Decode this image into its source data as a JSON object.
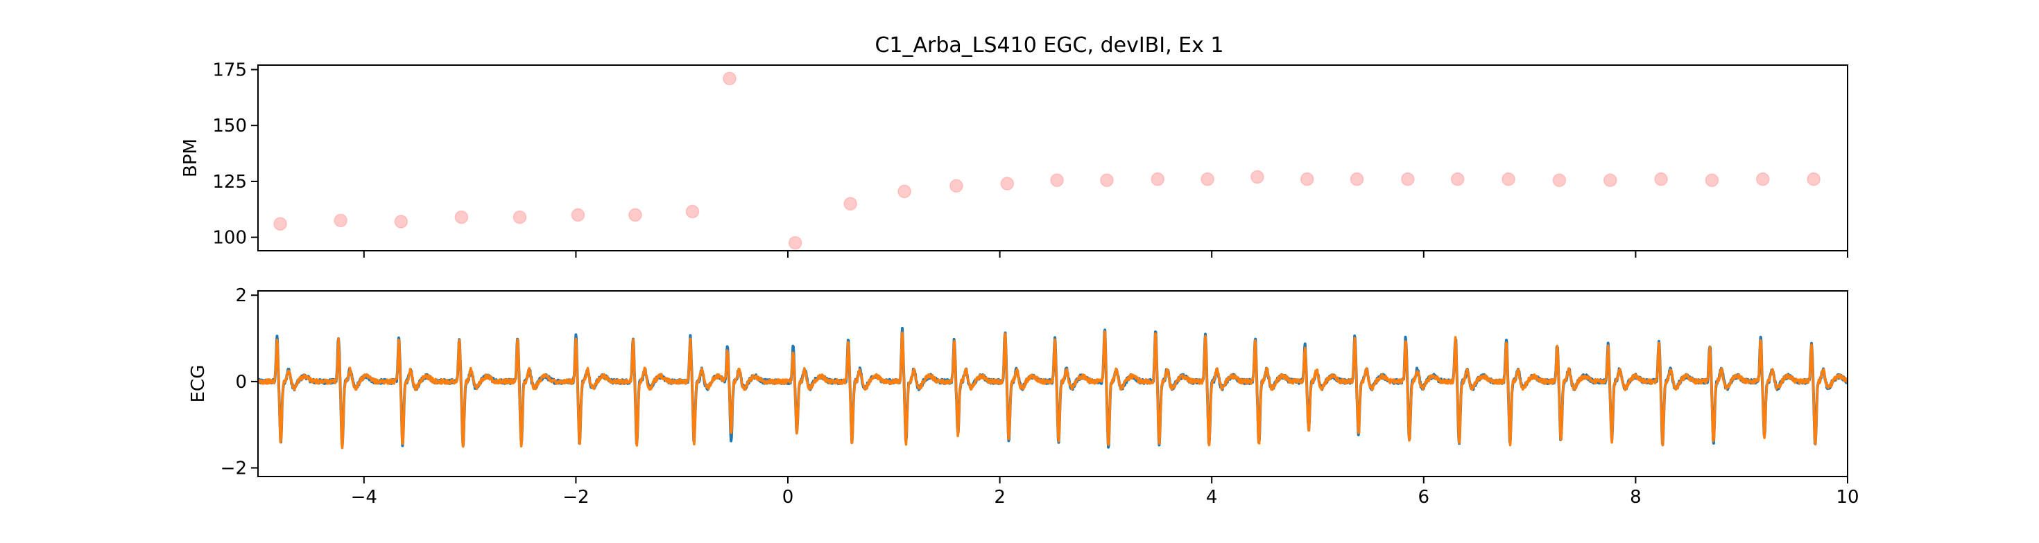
{
  "figure": {
    "title": "C1_Arba_LS410 EGC, devIBI, Ex 1"
  },
  "chart_data": [
    {
      "type": "scatter",
      "ylabel": "BPM",
      "xlim": [
        -5,
        10
      ],
      "ylim": [
        94,
        177
      ],
      "yticks": [
        100,
        125,
        150,
        175
      ],
      "xticks": [
        -4,
        -2,
        0,
        2,
        4,
        6,
        8,
        10
      ],
      "show_xtick_labels": false,
      "grid": false,
      "marker_color": "#ff9896",
      "marker_alpha": 0.5,
      "points": [
        {
          "x": -4.79,
          "y": 106
        },
        {
          "x": -4.22,
          "y": 107.5
        },
        {
          "x": -3.65,
          "y": 107
        },
        {
          "x": -3.08,
          "y": 109
        },
        {
          "x": -2.53,
          "y": 109
        },
        {
          "x": -1.98,
          "y": 110
        },
        {
          "x": -1.44,
          "y": 110
        },
        {
          "x": -0.9,
          "y": 111.5
        },
        {
          "x": -0.55,
          "y": 171
        },
        {
          "x": 0.07,
          "y": 97.5
        },
        {
          "x": 0.59,
          "y": 115
        },
        {
          "x": 1.1,
          "y": 120.5
        },
        {
          "x": 1.59,
          "y": 123
        },
        {
          "x": 2.07,
          "y": 124
        },
        {
          "x": 2.54,
          "y": 125.5
        },
        {
          "x": 3.01,
          "y": 125.5
        },
        {
          "x": 3.49,
          "y": 126
        },
        {
          "x": 3.96,
          "y": 126
        },
        {
          "x": 4.43,
          "y": 127
        },
        {
          "x": 4.9,
          "y": 126
        },
        {
          "x": 5.37,
          "y": 126
        },
        {
          "x": 5.85,
          "y": 126
        },
        {
          "x": 6.32,
          "y": 126
        },
        {
          "x": 6.8,
          "y": 126
        },
        {
          "x": 7.28,
          "y": 125.5
        },
        {
          "x": 7.76,
          "y": 125.5
        },
        {
          "x": 8.24,
          "y": 126
        },
        {
          "x": 8.72,
          "y": 125.5
        },
        {
          "x": 9.2,
          "y": 126
        },
        {
          "x": 9.68,
          "y": 126
        }
      ]
    },
    {
      "type": "line",
      "ylabel": "ECG",
      "xlim": [
        -5,
        10
      ],
      "ylim": [
        -2.2,
        2.1
      ],
      "yticks": [
        -2,
        0,
        2
      ],
      "xticks": [
        -4,
        -2,
        0,
        2,
        4,
        6,
        8,
        10
      ],
      "grid": false,
      "series": [
        {
          "color": "#1f77b4",
          "beats": [
            {
              "t": -4.82,
              "r": 1.02,
              "s": -1.4
            },
            {
              "t": -4.24,
              "r": 1.02,
              "s": -1.5
            },
            {
              "t": -3.67,
              "r": 1.0,
              "s": -1.45
            },
            {
              "t": -3.1,
              "r": 1.0,
              "s": -1.5
            },
            {
              "t": -2.55,
              "r": 1.0,
              "s": -1.45
            },
            {
              "t": -2.0,
              "r": 1.08,
              "s": -1.45
            },
            {
              "t": -1.46,
              "r": 1.03,
              "s": -1.45
            },
            {
              "t": -0.92,
              "r": 1.03,
              "s": -1.4
            },
            {
              "t": -0.57,
              "r": 0.82,
              "s": -1.35
            },
            {
              "t": 0.05,
              "r": 0.8,
              "s": -1.15
            },
            {
              "t": 0.57,
              "r": 0.97,
              "s": -1.4
            },
            {
              "t": 1.08,
              "r": 1.2,
              "s": -1.4
            },
            {
              "t": 1.57,
              "r": 0.97,
              "s": -1.2
            },
            {
              "t": 2.05,
              "r": 1.15,
              "s": -1.35
            },
            {
              "t": 2.52,
              "r": 1.0,
              "s": -1.38
            },
            {
              "t": 2.99,
              "r": 1.23,
              "s": -1.5
            },
            {
              "t": 3.47,
              "r": 1.17,
              "s": -1.45
            },
            {
              "t": 3.94,
              "r": 1.1,
              "s": -1.45
            },
            {
              "t": 4.41,
              "r": 0.98,
              "s": -1.45
            },
            {
              "t": 4.88,
              "r": 0.85,
              "s": -1.1
            },
            {
              "t": 5.35,
              "r": 1.05,
              "s": -1.2
            },
            {
              "t": 5.83,
              "r": 1.02,
              "s": -1.35
            },
            {
              "t": 6.3,
              "r": 1.03,
              "s": -1.42
            },
            {
              "t": 6.78,
              "r": 1.0,
              "s": -1.42
            },
            {
              "t": 7.26,
              "r": 0.85,
              "s": -1.38
            },
            {
              "t": 7.74,
              "r": 0.85,
              "s": -1.35
            },
            {
              "t": 8.22,
              "r": 0.95,
              "s": -1.45
            },
            {
              "t": 8.7,
              "r": 0.85,
              "s": -1.4
            },
            {
              "t": 9.18,
              "r": 1.05,
              "s": -1.3
            },
            {
              "t": 9.66,
              "r": 0.88,
              "s": -1.48
            }
          ]
        },
        {
          "color": "#ff7f0e",
          "beats": [
            {
              "t": -4.82,
              "r": 0.95,
              "s": -1.42
            },
            {
              "t": -4.24,
              "r": 0.95,
              "s": -1.52
            },
            {
              "t": -3.67,
              "r": 0.95,
              "s": -1.47
            },
            {
              "t": -3.1,
              "r": 0.95,
              "s": -1.52
            },
            {
              "t": -2.55,
              "r": 0.95,
              "s": -1.47
            },
            {
              "t": -2.0,
              "r": 1.0,
              "s": -1.47
            },
            {
              "t": -1.46,
              "r": 0.97,
              "s": -1.47
            },
            {
              "t": -0.92,
              "r": 0.97,
              "s": -1.42
            },
            {
              "t": -0.57,
              "r": 0.75,
              "s": -1.2
            },
            {
              "t": 0.05,
              "r": 0.7,
              "s": -1.17
            },
            {
              "t": 0.57,
              "r": 0.92,
              "s": -1.42
            },
            {
              "t": 1.08,
              "r": 1.15,
              "s": -1.42
            },
            {
              "t": 1.57,
              "r": 0.92,
              "s": -1.22
            },
            {
              "t": 2.05,
              "r": 1.1,
              "s": -1.37
            },
            {
              "t": 2.52,
              "r": 0.95,
              "s": -1.4
            },
            {
              "t": 2.99,
              "r": 1.18,
              "s": -1.52
            },
            {
              "t": 3.47,
              "r": 1.12,
              "s": -1.47
            },
            {
              "t": 3.94,
              "r": 1.05,
              "s": -1.47
            },
            {
              "t": 4.41,
              "r": 0.93,
              "s": -1.47
            },
            {
              "t": 4.88,
              "r": 0.8,
              "s": -1.12
            },
            {
              "t": 5.35,
              "r": 1.0,
              "s": -1.22
            },
            {
              "t": 5.83,
              "r": 0.97,
              "s": -1.37
            },
            {
              "t": 6.3,
              "r": 0.98,
              "s": -1.44
            },
            {
              "t": 6.78,
              "r": 0.95,
              "s": -1.44
            },
            {
              "t": 7.26,
              "r": 0.8,
              "s": -1.4
            },
            {
              "t": 7.74,
              "r": 0.8,
              "s": -1.37
            },
            {
              "t": 8.22,
              "r": 0.9,
              "s": -1.47
            },
            {
              "t": 8.7,
              "r": 0.8,
              "s": -1.42
            },
            {
              "t": 9.18,
              "r": 1.0,
              "s": -1.32
            },
            {
              "t": 9.66,
              "r": 0.83,
              "s": -1.5
            }
          ]
        }
      ]
    }
  ]
}
